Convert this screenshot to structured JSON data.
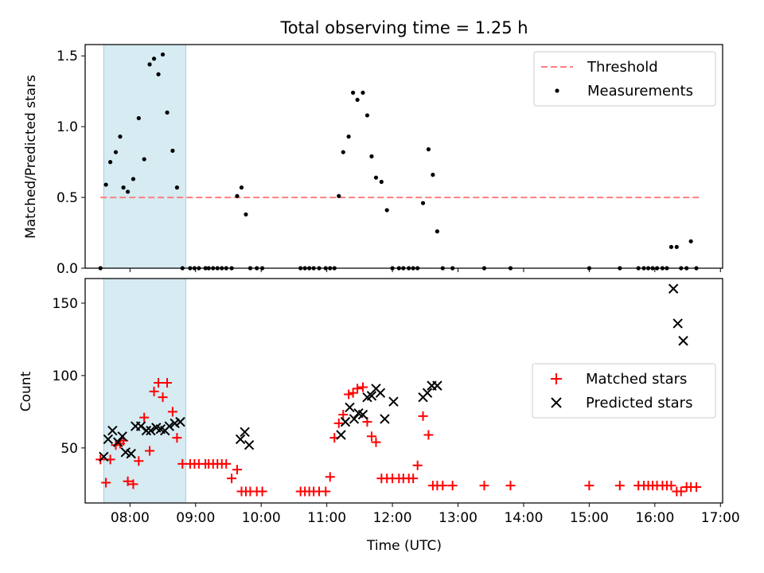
{
  "title": "Total observing time = 1.25 h",
  "xlabel": "Time (UTC)",
  "x_tick_labels": [
    "08:00",
    "09:00",
    "10:00",
    "11:00",
    "12:00",
    "13:00",
    "14:00",
    "15:00",
    "16:00",
    "17:00"
  ],
  "colors": {
    "threshold": "#ff7f7f",
    "measurements": "#000000",
    "matched": "#ff0000",
    "predicted": "#000000",
    "shade": "#add8e6"
  },
  "chart_data": [
    {
      "type": "scatter",
      "ylabel": "Matched/Predicted stars",
      "xlim": [
        "07:19",
        "17:02"
      ],
      "ylim": [
        0,
        1.58
      ],
      "y_ticks": [
        "0.0",
        "0.5",
        "1.0",
        "1.5"
      ],
      "y_tick_values": [
        0,
        0.5,
        1.0,
        1.5
      ],
      "legend": {
        "placement": "upper right",
        "entries": [
          "Threshold",
          "Measurements"
        ]
      },
      "shaded_interval": [
        "07:36",
        "08:51"
      ],
      "threshold": {
        "name": "Threshold",
        "value": 0.5,
        "x": [
          "07:33",
          "16:42"
        ]
      },
      "series": [
        {
          "name": "Measurements",
          "x": [
            "07:33",
            "07:38",
            "07:42",
            "07:47",
            "07:51",
            "07:54",
            "07:58",
            "08:03",
            "08:08",
            "08:13",
            "08:18",
            "08:22",
            "08:26",
            "08:30",
            "08:34",
            "08:39",
            "08:43",
            "08:48",
            "08:55",
            "08:59",
            "09:03",
            "09:09",
            "09:12",
            "09:16",
            "09:20",
            "09:24",
            "09:28",
            "09:33",
            "09:38",
            "09:42",
            "09:46",
            "09:50",
            "09:56",
            "10:01",
            "10:36",
            "10:40",
            "10:44",
            "10:48",
            "10:53",
            "10:59",
            "11:03",
            "11:07",
            "11:11",
            "11:15",
            "11:20",
            "11:24",
            "11:28",
            "11:33",
            "11:37",
            "11:41",
            "11:45",
            "11:50",
            "11:55",
            "12:00",
            "12:06",
            "12:10",
            "12:15",
            "12:19",
            "12:23",
            "12:28",
            "12:33",
            "12:37",
            "12:41",
            "12:46",
            "12:55",
            "13:24",
            "13:48",
            "15:00",
            "15:28",
            "15:45",
            "15:50",
            "15:54",
            "15:58",
            "16:02",
            "16:07",
            "16:11",
            "16:15",
            "16:20",
            "16:24",
            "16:29",
            "16:33",
            "16:38"
          ],
          "y": [
            0.0,
            0.59,
            0.75,
            0.82,
            0.93,
            0.57,
            0.54,
            0.63,
            1.06,
            0.77,
            1.44,
            1.48,
            1.37,
            1.51,
            1.1,
            0.83,
            0.57,
            0.0,
            0.0,
            0.0,
            0.0,
            0.0,
            0.0,
            0.0,
            0.0,
            0.0,
            0.0,
            0.0,
            0.51,
            0.57,
            0.38,
            0.0,
            0.0,
            0.0,
            0.0,
            0.0,
            0.0,
            0.0,
            0.0,
            0.0,
            0.0,
            0.0,
            0.51,
            0.82,
            0.93,
            1.24,
            1.19,
            1.24,
            1.08,
            0.79,
            0.64,
            0.61,
            0.41,
            0.0,
            0.0,
            0.0,
            0.0,
            0.0,
            0.0,
            0.46,
            0.84,
            0.66,
            0.26,
            0.0,
            0.0,
            0.0,
            0.0,
            0.0,
            0.0,
            0.0,
            0.0,
            0.0,
            0.0,
            0.0,
            0.0,
            0.0,
            0.15,
            0.15,
            0.0,
            0.0,
            0.19,
            0.0
          ]
        }
      ]
    },
    {
      "type": "scatter",
      "ylabel": "Count",
      "xlim": [
        "07:19",
        "17:02"
      ],
      "ylim": [
        12,
        167
      ],
      "y_ticks": [
        "50",
        "100",
        "150"
      ],
      "y_tick_values": [
        50,
        100,
        150
      ],
      "legend": {
        "placement": "center right",
        "entries": [
          "Matched stars",
          "Predicted stars"
        ]
      },
      "shaded_interval": [
        "07:36",
        "08:51"
      ],
      "series": [
        {
          "name": "Matched stars",
          "marker": "+",
          "x": [
            "07:33",
            "07:38",
            "07:42",
            "07:47",
            "07:51",
            "07:54",
            "07:58",
            "08:03",
            "08:08",
            "08:13",
            "08:18",
            "08:22",
            "08:26",
            "08:30",
            "08:34",
            "08:39",
            "08:43",
            "08:48",
            "08:55",
            "08:59",
            "09:03",
            "09:09",
            "09:12",
            "09:16",
            "09:20",
            "09:24",
            "09:28",
            "09:33",
            "09:38",
            "09:42",
            "09:46",
            "09:50",
            "09:56",
            "10:01",
            "10:36",
            "10:40",
            "10:44",
            "10:48",
            "10:53",
            "10:59",
            "11:03",
            "11:07",
            "11:11",
            "11:15",
            "11:20",
            "11:24",
            "11:28",
            "11:33",
            "11:37",
            "11:41",
            "11:45",
            "11:50",
            "11:55",
            "12:00",
            "12:06",
            "12:10",
            "12:15",
            "12:19",
            "12:23",
            "12:28",
            "12:33",
            "12:37",
            "12:41",
            "12:46",
            "12:55",
            "13:24",
            "13:48",
            "15:00",
            "15:28",
            "15:45",
            "15:50",
            "15:54",
            "15:58",
            "16:02",
            "16:07",
            "16:11",
            "16:15",
            "16:20",
            "16:24",
            "16:29",
            "16:33",
            "16:38"
          ],
          "y": [
            42,
            26,
            42,
            52,
            53,
            55,
            27,
            25,
            41,
            71,
            48,
            89,
            95,
            85,
            95,
            75,
            57,
            39,
            39,
            39,
            39,
            39,
            39,
            39,
            39,
            39,
            39,
            29,
            35,
            20,
            20,
            20,
            20,
            20,
            20,
            20,
            20,
            20,
            20,
            20,
            30,
            57,
            67,
            73,
            87,
            88,
            91,
            92,
            68,
            58,
            54,
            29,
            29,
            29,
            29,
            29,
            29,
            29,
            38,
            72,
            59,
            24,
            24,
            24,
            24,
            24,
            24,
            24,
            24,
            24,
            24,
            24,
            24,
            24,
            24,
            24,
            24,
            20,
            20,
            23,
            23,
            23
          ]
        },
        {
          "name": "Predicted stars",
          "marker": "x",
          "x": [
            "07:36",
            "07:40",
            "07:44",
            "07:49",
            "07:53",
            "07:56",
            "08:01",
            "08:05",
            "08:10",
            "08:15",
            "08:19",
            "08:24",
            "08:28",
            "08:32",
            "08:36",
            "08:41",
            "08:46",
            "09:41",
            "09:45",
            "09:49",
            "11:13",
            "11:17",
            "11:21",
            "11:25",
            "11:29",
            "11:33",
            "11:37",
            "11:41",
            "11:45",
            "11:49",
            "11:53",
            "12:01",
            "12:28",
            "12:32",
            "12:36",
            "12:41",
            "16:17",
            "16:21",
            "16:26"
          ],
          "y": [
            44,
            56,
            62,
            54,
            58,
            47,
            46,
            65,
            65,
            62,
            62,
            64,
            63,
            62,
            65,
            67,
            68,
            56,
            61,
            52,
            59,
            68,
            78,
            70,
            74,
            73,
            85,
            86,
            91,
            88,
            70,
            82,
            85,
            88,
            93,
            93,
            160,
            136,
            124
          ]
        }
      ]
    }
  ]
}
